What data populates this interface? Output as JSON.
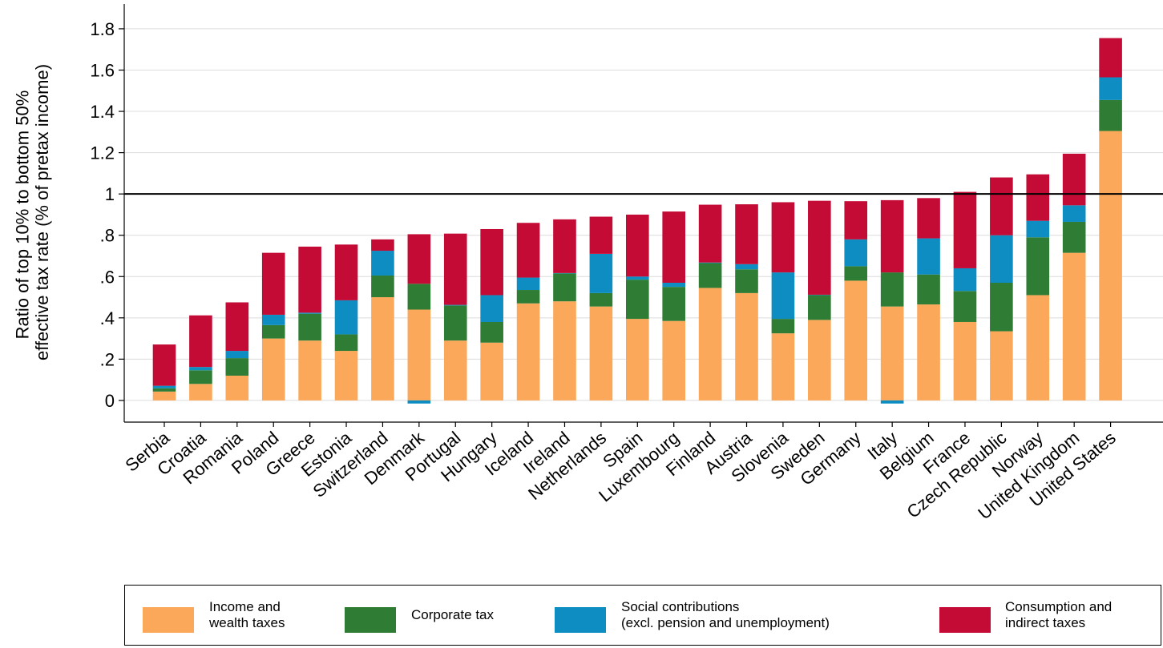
{
  "chart_data": {
    "type": "stacked_bar",
    "y_label": [
      "Ratio of top 10% to bottom 50%",
      "effective tax rate (% of pretax income)"
    ],
    "categories": [
      "Serbia",
      "Croatia",
      "Romania",
      "Poland",
      "Greece",
      "Estonia",
      "Switzerland",
      "Denmark",
      "Portugal",
      "Hungary",
      "Iceland",
      "Ireland",
      "Netherlands",
      "Spain",
      "Luxembourg",
      "Finland",
      "Austria",
      "Slovenia",
      "Sweden",
      "Germany",
      "Italy",
      "Belgium",
      "France",
      "Czech Republic",
      "Norway",
      "United Kingdom",
      "United States"
    ],
    "series": [
      {
        "name": "Income and\nwealth taxes",
        "color": "#fba85a",
        "values": [
          0.043,
          0.08,
          0.12,
          0.3,
          0.29,
          0.24,
          0.5,
          0.44,
          0.29,
          0.28,
          0.47,
          0.48,
          0.455,
          0.395,
          0.385,
          0.545,
          0.52,
          0.325,
          0.39,
          0.58,
          0.455,
          0.465,
          0.38,
          0.335,
          0.51,
          0.715,
          1.305
        ]
      },
      {
        "name": "Corporate tax",
        "color": "#2f7d35",
        "values": [
          0.016,
          0.066,
          0.085,
          0.065,
          0.13,
          0.08,
          0.105,
          0.125,
          0.17,
          0.1,
          0.065,
          0.135,
          0.065,
          0.19,
          0.165,
          0.12,
          0.115,
          0.07,
          0.12,
          0.07,
          0.165,
          0.145,
          0.15,
          0.235,
          0.28,
          0.15,
          0.15
        ]
      },
      {
        "name": "Social contributions\n(excl. pension and unemployment)",
        "color": "#0d8dc1",
        "values": [
          0.012,
          0.016,
          0.035,
          0.05,
          0.005,
          0.165,
          0.12,
          -0.015,
          0.003,
          0.13,
          0.06,
          0.002,
          0.19,
          0.015,
          0.02,
          0.003,
          0.025,
          0.225,
          0.002,
          0.13,
          -0.015,
          0.175,
          0.11,
          0.23,
          0.08,
          0.08,
          0.11
        ]
      },
      {
        "name": "Consumption and\nindirect taxes",
        "color": "#c30b35",
        "values": [
          0.2,
          0.25,
          0.235,
          0.3,
          0.32,
          0.27,
          0.055,
          0.24,
          0.345,
          0.32,
          0.265,
          0.26,
          0.18,
          0.3,
          0.345,
          0.28,
          0.29,
          0.34,
          0.455,
          0.185,
          0.35,
          0.195,
          0.37,
          0.28,
          0.225,
          0.25,
          0.19
        ]
      }
    ],
    "ylim": [
      -0.105,
      1.92
    ],
    "yticks": [
      0,
      {
        "value": 0.2,
        "label": ".2"
      },
      {
        "value": 0.4,
        "label": ".4"
      },
      {
        "value": 0.6,
        "label": ".6"
      },
      {
        "value": 0.8,
        "label": ".8"
      },
      1,
      1.2,
      1.4,
      1.6,
      1.8
    ],
    "hline": 1,
    "grid": true
  }
}
